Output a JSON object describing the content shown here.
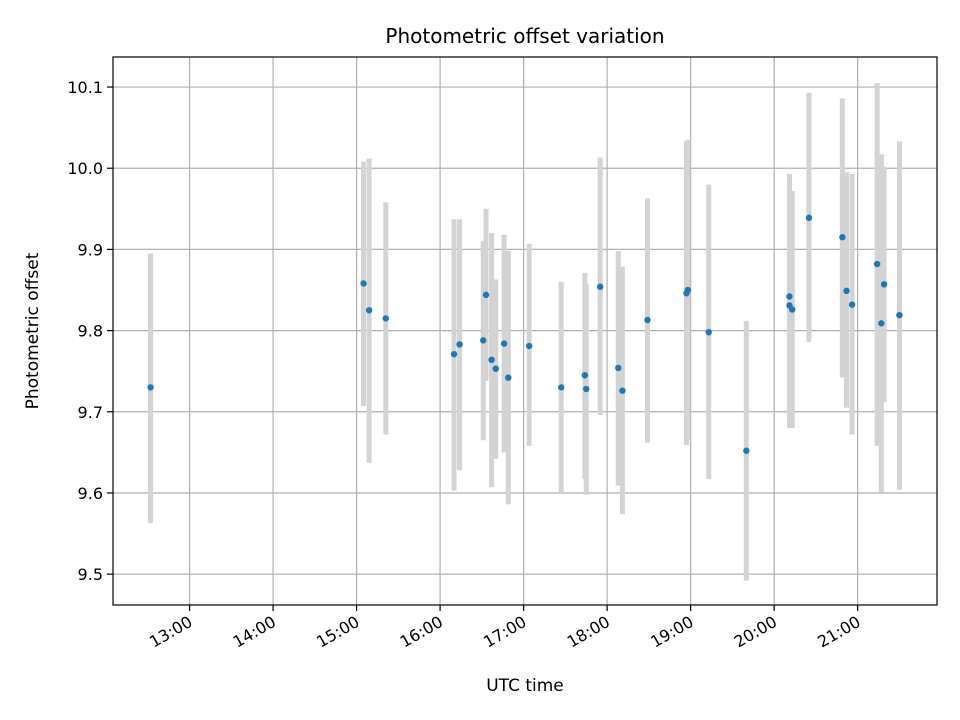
{
  "chart_data": {
    "type": "scatter",
    "title": "Photometric offset variation",
    "xlabel": "UTC time",
    "ylabel": "Photometric offset",
    "x_is_time": true,
    "xlim": [
      "12:05",
      "21:57"
    ],
    "ylim": [
      9.462,
      10.137
    ],
    "x_ticks": [
      "13:00",
      "14:00",
      "15:00",
      "16:00",
      "17:00",
      "18:00",
      "19:00",
      "20:00",
      "21:00"
    ],
    "y_ticks": [
      "9.5",
      "9.6",
      "9.7",
      "9.8",
      "9.9",
      "10.0",
      "10.1"
    ],
    "grid": true,
    "colors": {
      "point": "#1f77b4",
      "errorbar": "#d3d3d3",
      "grid": "#b0b0b0"
    },
    "series": [
      {
        "points": [
          {
            "x": "12:32",
            "y": 9.73,
            "ylo": 9.563,
            "yhi": 9.895
          },
          {
            "x": "15:05",
            "y": 9.858,
            "ylo": 9.707,
            "yhi": 10.008
          },
          {
            "x": "15:09",
            "y": 9.825,
            "ylo": 9.637,
            "yhi": 10.012
          },
          {
            "x": "15:21",
            "y": 9.815,
            "ylo": 9.672,
            "yhi": 9.958
          },
          {
            "x": "16:10",
            "y": 9.771,
            "ylo": 9.603,
            "yhi": 9.937
          },
          {
            "x": "16:14",
            "y": 9.783,
            "ylo": 9.628,
            "yhi": 9.937
          },
          {
            "x": "16:31",
            "y": 9.788,
            "ylo": 9.665,
            "yhi": 9.91
          },
          {
            "x": "16:33",
            "y": 9.844,
            "ylo": 9.738,
            "yhi": 9.95
          },
          {
            "x": "16:37",
            "y": 9.764,
            "ylo": 9.607,
            "yhi": 9.92
          },
          {
            "x": "16:40",
            "y": 9.753,
            "ylo": 9.642,
            "yhi": 9.863
          },
          {
            "x": "16:46",
            "y": 9.784,
            "ylo": 9.65,
            "yhi": 9.918
          },
          {
            "x": "16:49",
            "y": 9.742,
            "ylo": 9.586,
            "yhi": 9.898
          },
          {
            "x": "17:04",
            "y": 9.781,
            "ylo": 9.658,
            "yhi": 9.907
          },
          {
            "x": "17:27",
            "y": 9.73,
            "ylo": 9.6,
            "yhi": 9.86
          },
          {
            "x": "17:44",
            "y": 9.745,
            "ylo": 9.618,
            "yhi": 9.871
          },
          {
            "x": "17:45",
            "y": 9.728,
            "ylo": 9.598,
            "yhi": 9.858
          },
          {
            "x": "17:55",
            "y": 9.854,
            "ylo": 9.696,
            "yhi": 10.013
          },
          {
            "x": "18:08",
            "y": 9.754,
            "ylo": 9.609,
            "yhi": 9.898
          },
          {
            "x": "18:11",
            "y": 9.726,
            "ylo": 9.574,
            "yhi": 9.879
          },
          {
            "x": "18:29",
            "y": 9.813,
            "ylo": 9.662,
            "yhi": 9.963
          },
          {
            "x": "18:57",
            "y": 9.846,
            "ylo": 9.659,
            "yhi": 10.033
          },
          {
            "x": "18:58",
            "y": 9.85,
            "ylo": 9.665,
            "yhi": 10.035
          },
          {
            "x": "19:13",
            "y": 9.798,
            "ylo": 9.617,
            "yhi": 9.98
          },
          {
            "x": "19:40",
            "y": 9.652,
            "ylo": 9.492,
            "yhi": 9.812
          },
          {
            "x": "20:11",
            "y": 9.842,
            "ylo": 9.69,
            "yhi": 9.993
          },
          {
            "x": "20:11",
            "y": 9.831,
            "ylo": 9.68,
            "yhi": 9.983
          },
          {
            "x": "20:13",
            "y": 9.826,
            "ylo": 9.68,
            "yhi": 9.972
          },
          {
            "x": "20:25",
            "y": 9.939,
            "ylo": 9.786,
            "yhi": 10.093
          },
          {
            "x": "20:49",
            "y": 9.915,
            "ylo": 9.742,
            "yhi": 10.086
          },
          {
            "x": "20:52",
            "y": 9.849,
            "ylo": 9.705,
            "yhi": 9.995
          },
          {
            "x": "20:56",
            "y": 9.832,
            "ylo": 9.672,
            "yhi": 9.993
          },
          {
            "x": "21:14",
            "y": 9.882,
            "ylo": 9.658,
            "yhi": 10.105
          },
          {
            "x": "21:17",
            "y": 9.809,
            "ylo": 9.601,
            "yhi": 10.017
          },
          {
            "x": "21:19",
            "y": 9.857,
            "ylo": 9.712,
            "yhi": 10.002
          },
          {
            "x": "21:30",
            "y": 9.819,
            "ylo": 9.604,
            "yhi": 10.033
          }
        ]
      }
    ]
  }
}
